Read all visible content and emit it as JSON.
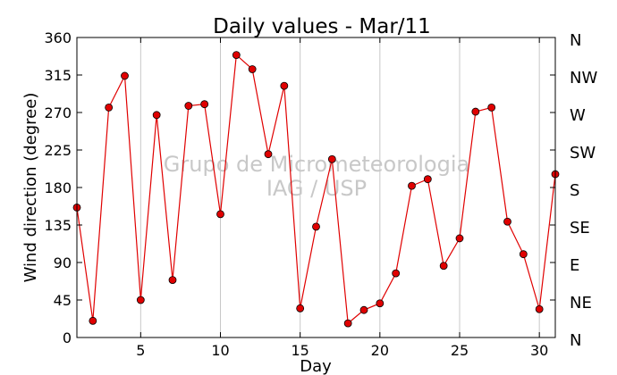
{
  "chart_data": {
    "type": "line",
    "title": "Daily values - Mar/11",
    "xlabel": "Day",
    "ylabel": "Wind direction (degree)",
    "xlim": [
      1,
      31
    ],
    "ylim": [
      0,
      360
    ],
    "x_ticks": [
      5,
      10,
      15,
      20,
      25,
      30
    ],
    "y_ticks": [
      0,
      45,
      90,
      135,
      180,
      225,
      270,
      315,
      360
    ],
    "compass_labels": [
      {
        "value": 0,
        "label": "N"
      },
      {
        "value": 45,
        "label": "NE"
      },
      {
        "value": 90,
        "label": "E"
      },
      {
        "value": 135,
        "label": "SE"
      },
      {
        "value": 180,
        "label": "S"
      },
      {
        "value": 225,
        "label": "SW"
      },
      {
        "value": 270,
        "label": "W"
      },
      {
        "value": 315,
        "label": "NW"
      },
      {
        "value": 360,
        "label": "N"
      }
    ],
    "grid": "vertical",
    "watermark": [
      "Grupo de Micrometeorologia",
      "IAG / USP"
    ],
    "series": [
      {
        "color": "#e00000",
        "marker_fill": "#e00000",
        "x": [
          1,
          2,
          3,
          4,
          5,
          6,
          7,
          8,
          9,
          10,
          11,
          12,
          13,
          14,
          15,
          16,
          17,
          18,
          19,
          20,
          21,
          22,
          23,
          24,
          25,
          26,
          27,
          28,
          29,
          30,
          31
        ],
        "values": [
          156,
          20,
          276,
          314,
          45,
          267,
          69,
          278,
          280,
          148,
          339,
          322,
          220,
          302,
          35,
          133,
          214,
          17,
          33,
          41,
          77,
          182,
          190,
          86,
          119,
          271,
          276,
          139,
          100,
          34,
          196
        ]
      }
    ]
  }
}
